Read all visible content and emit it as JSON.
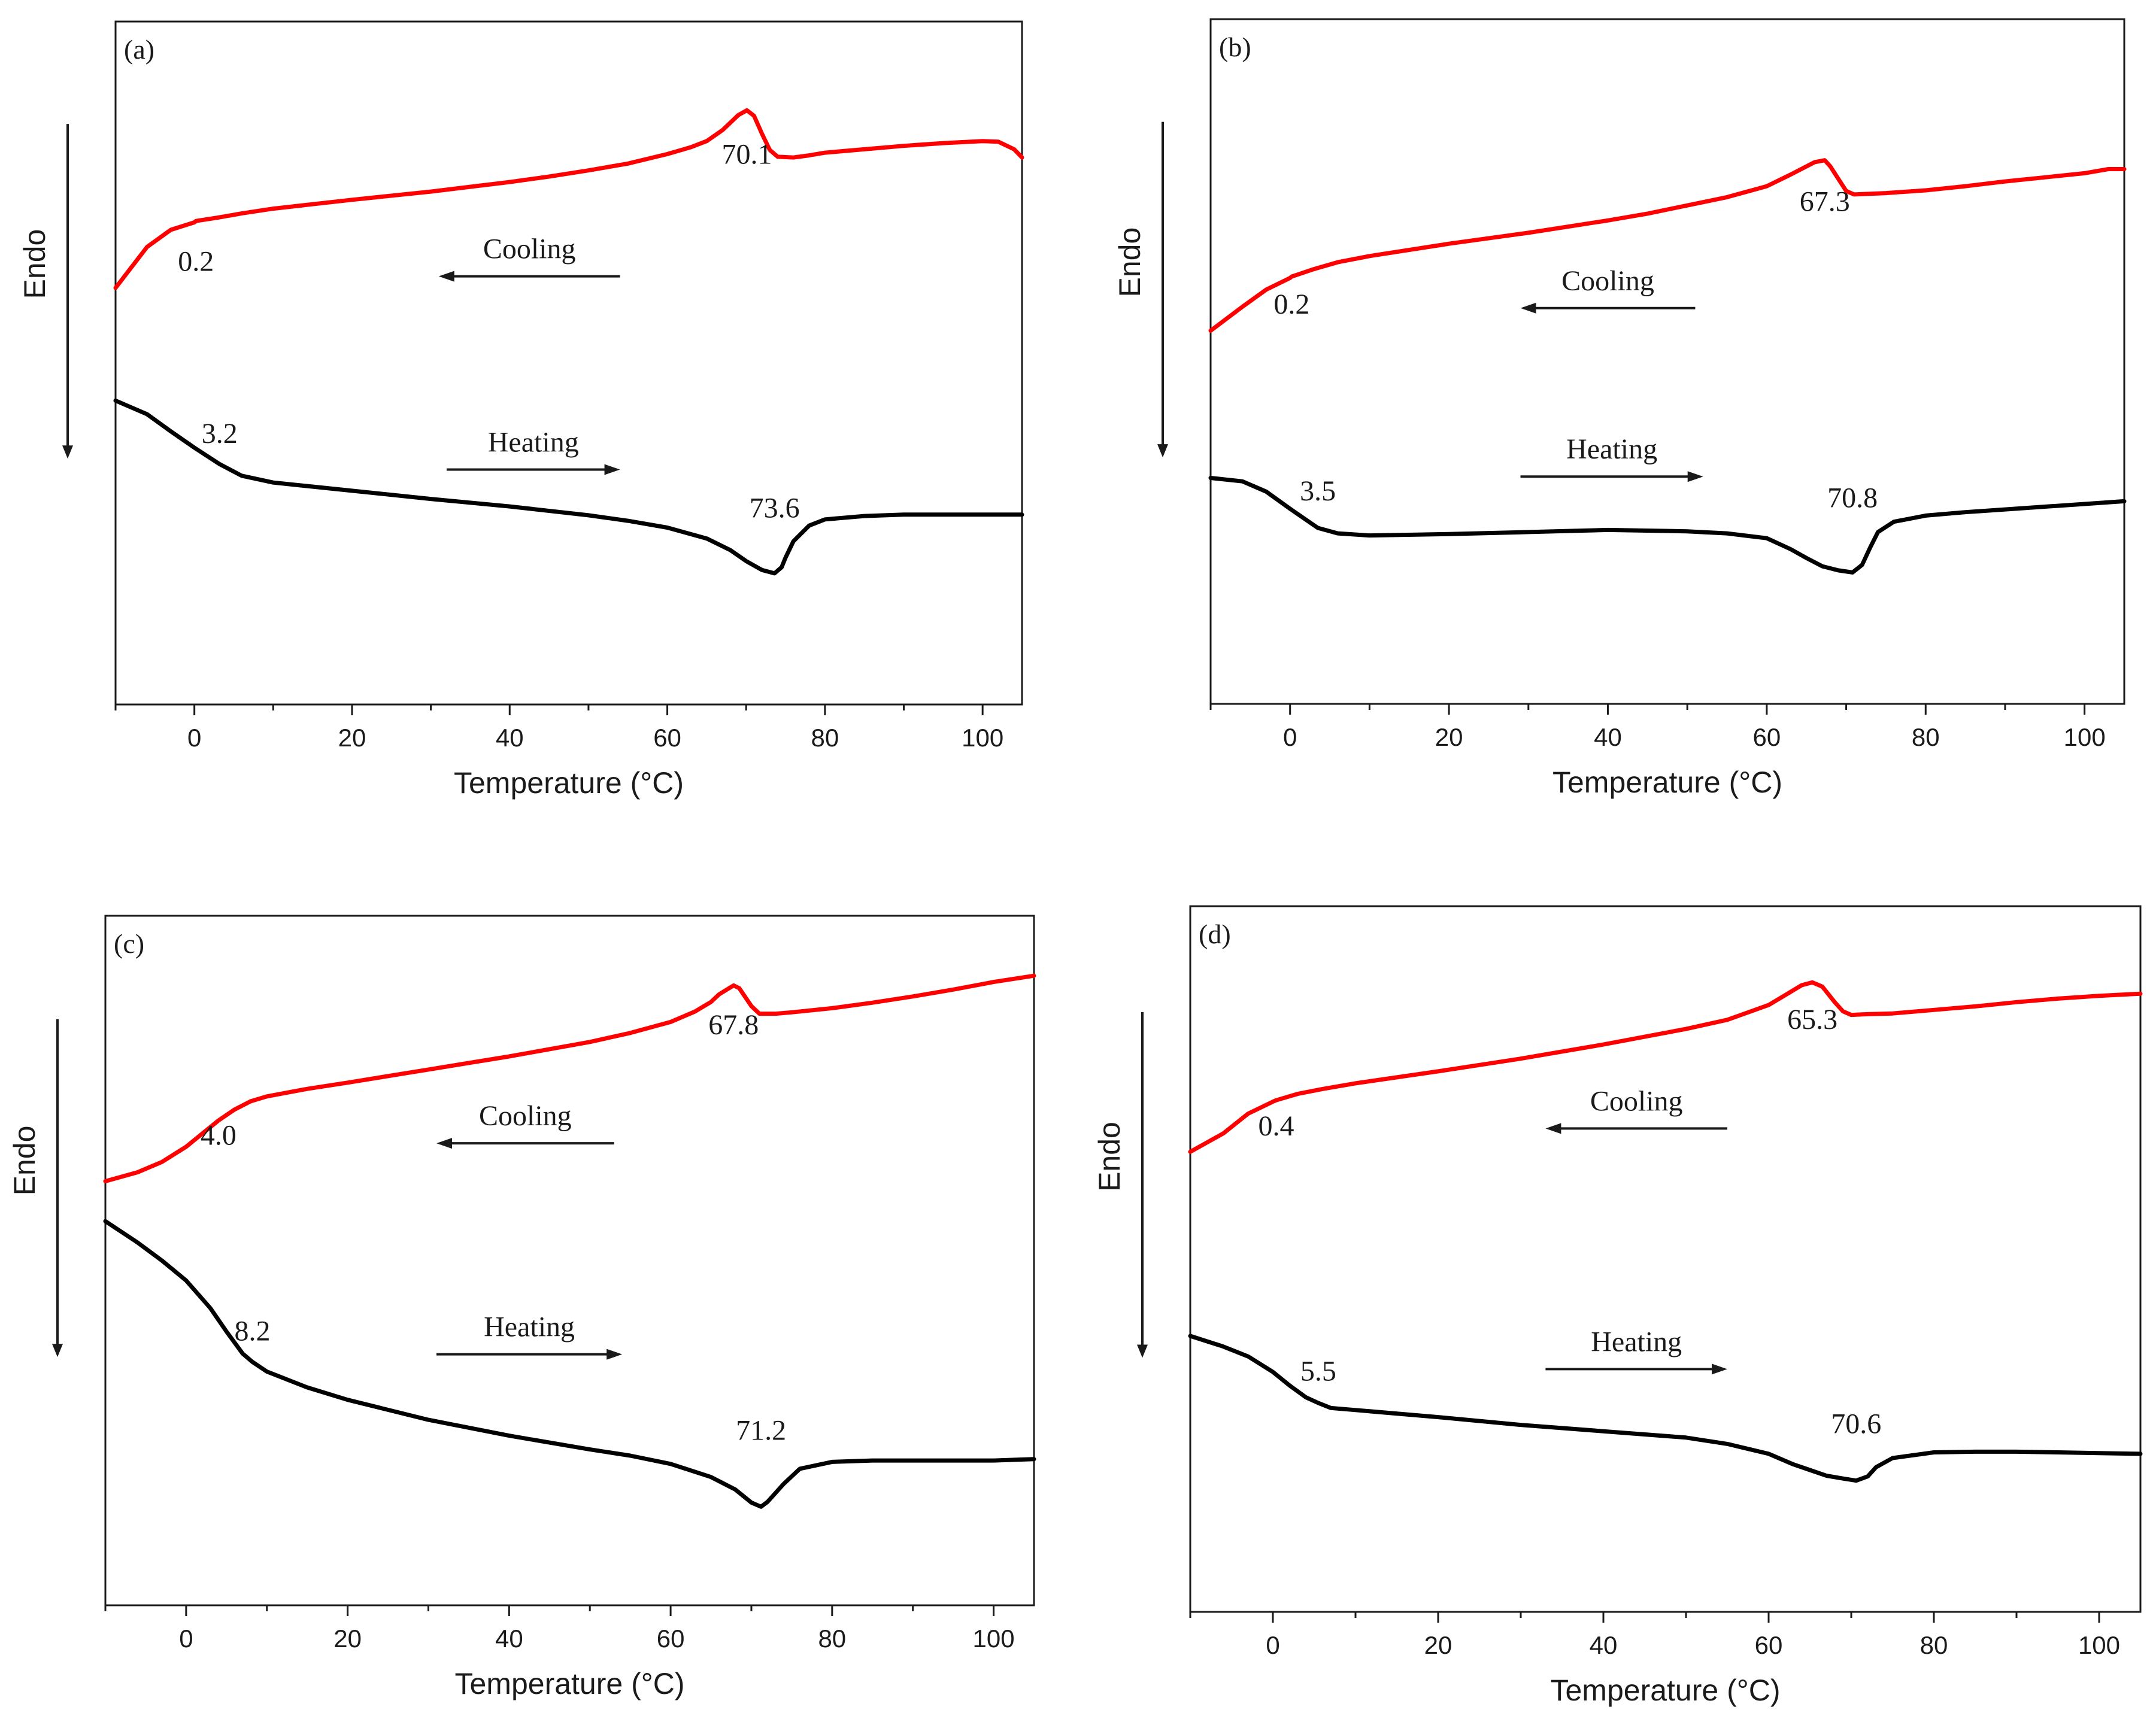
{
  "chart_data": [
    {
      "panel": "(a)",
      "type": "line",
      "xlabel": "Temperature (°C)",
      "ylabel": "Endo",
      "xlim": [
        -10,
        105
      ],
      "xticks": [
        0,
        20,
        40,
        60,
        80,
        100
      ],
      "ylim": [
        0,
        100
      ],
      "yticks_shown": false,
      "series": [
        {
          "direction": "Cooling",
          "color": "#ff0000",
          "x": [
            -10,
            -6,
            -3,
            0,
            0.2,
            3,
            6,
            10,
            20,
            30,
            40,
            45,
            50,
            55,
            60,
            63,
            65,
            67,
            68,
            69,
            70.1,
            71,
            72,
            73,
            74,
            76,
            78,
            80,
            85,
            90,
            95,
            100,
            102,
            104,
            105
          ],
          "y": [
            61,
            67,
            69.5,
            70.6,
            70.8,
            71.3,
            71.9,
            72.6,
            73.9,
            75.1,
            76.5,
            77.3,
            78.2,
            79.2,
            80.6,
            81.6,
            82.5,
            84.1,
            85.2,
            86.3,
            87.0,
            86.2,
            83.6,
            81.2,
            80.2,
            80.1,
            80.4,
            80.8,
            81.3,
            81.8,
            82.2,
            82.5,
            82.4,
            81.3,
            80.1
          ]
        },
        {
          "direction": "Heating",
          "color": "#000000",
          "x": [
            -10,
            -6,
            -3,
            0,
            3.2,
            6,
            10,
            20,
            30,
            40,
            50,
            55,
            60,
            65,
            68,
            70,
            72,
            73.6,
            74.5,
            75,
            76,
            78,
            80,
            85,
            90,
            95,
            100,
            105
          ],
          "y": [
            44.5,
            42.5,
            40,
            37.6,
            35.2,
            33.5,
            32.5,
            31.3,
            30.1,
            29,
            27.7,
            26.9,
            25.9,
            24.3,
            22.6,
            21.0,
            19.7,
            19.2,
            20.1,
            21.5,
            23.9,
            26.2,
            27.1,
            27.6,
            27.8,
            27.8,
            27.8,
            27.8
          ]
        }
      ],
      "annotations": [
        {
          "text": "70.1",
          "x": 70.1,
          "y": 79.2
        },
        {
          "text": "0.2",
          "x": 0.2,
          "y": 63.5
        },
        {
          "text": "3.2",
          "x": 3.2,
          "y": 38.3
        },
        {
          "text": "73.6",
          "x": 73.6,
          "y": 27.4
        }
      ],
      "arrows": [
        {
          "text": "Cooling",
          "direction": "left",
          "x_from": 54,
          "x_to": 31,
          "y": 62.7
        },
        {
          "text": "Heating",
          "direction": "right",
          "x_from": 32,
          "x_to": 54,
          "y": 34.4
        }
      ],
      "grid": false,
      "legend": "none"
    },
    {
      "panel": "(b)",
      "type": "line",
      "xlabel": "Temperature (°C)",
      "ylabel": "Endo",
      "xlim": [
        -10,
        105
      ],
      "xticks": [
        0,
        20,
        40,
        60,
        80,
        100
      ],
      "ylim": [
        0,
        100
      ],
      "yticks_shown": false,
      "series": [
        {
          "direction": "Cooling",
          "color": "#ff0000",
          "x": [
            -10,
            -6,
            -3,
            0,
            0.2,
            3,
            6,
            10,
            20,
            30,
            40,
            45,
            50,
            55,
            60,
            63,
            65,
            66,
            67.3,
            68,
            69,
            70,
            71,
            73,
            75,
            80,
            85,
            90,
            95,
            100,
            103,
            105
          ],
          "y": [
            54.5,
            58,
            60.5,
            62.2,
            62.4,
            63.5,
            64.5,
            65.4,
            67.2,
            68.8,
            70.6,
            71.6,
            72.8,
            74,
            75.6,
            77.3,
            78.5,
            79.1,
            79.4,
            78.5,
            76.7,
            74.9,
            74.4,
            74.5,
            74.6,
            75,
            75.6,
            76.3,
            76.9,
            77.5,
            78.1,
            78.1
          ]
        },
        {
          "direction": "Heating",
          "color": "#000000",
          "x": [
            -10,
            -6,
            -3,
            0,
            3.5,
            6,
            10,
            20,
            30,
            40,
            50,
            55,
            60,
            63,
            65,
            67,
            69,
            70.8,
            72,
            73,
            74,
            76,
            80,
            85,
            90,
            95,
            100,
            105
          ],
          "y": [
            33,
            32.5,
            31,
            28.5,
            25.7,
            24.9,
            24.6,
            24.8,
            25.1,
            25.4,
            25.2,
            24.9,
            24.2,
            22.6,
            21.3,
            20.1,
            19.5,
            19.2,
            20.3,
            22.8,
            25.1,
            26.6,
            27.5,
            28,
            28.4,
            28.8,
            29.2,
            29.6
          ]
        }
      ],
      "annotations": [
        {
          "text": "67.3",
          "x": 67.3,
          "y": 72.0
        },
        {
          "text": "0.2",
          "x": 0.2,
          "y": 57.0
        },
        {
          "text": "3.5",
          "x": 3.5,
          "y": 29.7
        },
        {
          "text": "70.8",
          "x": 70.8,
          "y": 28.7
        }
      ],
      "arrows": [
        {
          "text": "Cooling",
          "direction": "left",
          "x_from": 51,
          "x_to": 29,
          "y": 57.8
        },
        {
          "text": "Heating",
          "direction": "right",
          "x_from": 29,
          "x_to": 52,
          "y": 33.2
        }
      ],
      "grid": false,
      "legend": "none"
    },
    {
      "panel": "(c)",
      "type": "line",
      "xlabel": "Temperature (°C)",
      "ylabel": "Endo",
      "xlim": [
        -10,
        105
      ],
      "xticks": [
        0,
        20,
        40,
        60,
        80,
        100
      ],
      "ylim": [
        0,
        100
      ],
      "yticks_shown": false,
      "series": [
        {
          "direction": "Cooling",
          "color": "#ff0000",
          "x": [
            -10,
            -6,
            -3,
            0,
            2,
            4,
            6,
            8,
            10,
            15,
            20,
            30,
            40,
            50,
            55,
            60,
            63,
            65,
            66,
            67.8,
            68.5,
            70,
            71,
            73,
            75,
            80,
            85,
            90,
            95,
            100,
            105
          ],
          "y": [
            61.5,
            62.8,
            64.3,
            66.5,
            68.4,
            70.3,
            71.9,
            73.1,
            73.8,
            74.9,
            75.8,
            77.7,
            79.6,
            81.7,
            83,
            84.6,
            86.1,
            87.5,
            88.6,
            89.9,
            89.5,
            86.9,
            85.8,
            85.8,
            86,
            86.6,
            87.4,
            88.3,
            89.3,
            90.4,
            91.3
          ]
        },
        {
          "direction": "Heating",
          "color": "#000000",
          "x": [
            -10,
            -6,
            -3,
            0,
            3,
            5,
            7,
            8.2,
            10,
            15,
            20,
            30,
            40,
            50,
            55,
            60,
            65,
            68,
            70,
            71.2,
            72,
            74,
            76,
            80,
            85,
            90,
            95,
            100,
            105
          ],
          "y": [
            55.7,
            52.6,
            50,
            47.1,
            43.1,
            39.7,
            36.5,
            35.3,
            33.9,
            31.6,
            29.8,
            26.9,
            24.6,
            22.6,
            21.7,
            20.5,
            18.6,
            16.8,
            14.9,
            14.3,
            15,
            17.6,
            19.8,
            20.8,
            21,
            21,
            21,
            21,
            21.2
          ]
        }
      ],
      "annotations": [
        {
          "text": "67.8",
          "x": 67.8,
          "y": 82.8
        },
        {
          "text": "4.0",
          "x": 4.0,
          "y": 66.8
        },
        {
          "text": "8.2",
          "x": 8.2,
          "y": 38.4
        },
        {
          "text": "71.2",
          "x": 71.2,
          "y": 24.0
        }
      ],
      "arrows": [
        {
          "text": "Cooling",
          "direction": "left",
          "x_from": 53,
          "x_to": 31,
          "y": 67.0
        },
        {
          "text": "Heating",
          "direction": "right",
          "x_from": 31,
          "x_to": 54,
          "y": 36.4
        }
      ],
      "grid": false,
      "legend": "none"
    },
    {
      "panel": "(d)",
      "type": "line",
      "xlabel": "Temperature (°C)",
      "ylabel": "Endo",
      "xlim": [
        -10,
        105
      ],
      "xticks": [
        0,
        20,
        40,
        60,
        80,
        100
      ],
      "ylim": [
        0,
        100
      ],
      "yticks_shown": false,
      "series": [
        {
          "direction": "Cooling",
          "color": "#ff0000",
          "x": [
            -10,
            -6,
            -3,
            0,
            0.4,
            3,
            6,
            10,
            20,
            30,
            40,
            50,
            55,
            60,
            62,
            64,
            65.3,
            66.5,
            68,
            69,
            70,
            72,
            75,
            80,
            85,
            90,
            95,
            100,
            105
          ],
          "y": [
            65.2,
            67.8,
            70.6,
            72.3,
            72.5,
            73.4,
            74.1,
            74.9,
            76.6,
            78.4,
            80.4,
            82.6,
            83.9,
            86,
            87.4,
            88.8,
            89.2,
            88.6,
            86.4,
            85.1,
            84.6,
            84.7,
            84.8,
            85.3,
            85.8,
            86.4,
            86.9,
            87.3,
            87.6
          ]
        },
        {
          "direction": "Heating",
          "color": "#000000",
          "x": [
            -10,
            -6,
            -3,
            0,
            2,
            4,
            5.5,
            7,
            10,
            20,
            30,
            40,
            50,
            55,
            60,
            63,
            65,
            67,
            69,
            70.6,
            72,
            73,
            75,
            80,
            85,
            90,
            95,
            100,
            105
          ],
          "y": [
            39.1,
            37.6,
            36.2,
            34,
            32.1,
            30.4,
            29.6,
            28.9,
            28.6,
            27.6,
            26.5,
            25.6,
            24.7,
            23.8,
            22.4,
            20.9,
            20.1,
            19.3,
            18.9,
            18.6,
            19.2,
            20.5,
            21.8,
            22.6,
            22.7,
            22.7,
            22.6,
            22.5,
            22.4
          ]
        }
      ],
      "annotations": [
        {
          "text": "65.3",
          "x": 65.3,
          "y": 82.6
        },
        {
          "text": "0.4",
          "x": 0.4,
          "y": 67.5
        },
        {
          "text": "5.5",
          "x": 5.5,
          "y": 32.8
        },
        {
          "text": "70.6",
          "x": 70.6,
          "y": 25.3
        }
      ],
      "arrows": [
        {
          "text": "Cooling",
          "direction": "left",
          "x_from": 55,
          "x_to": 33,
          "y": 68.5
        },
        {
          "text": "Heating",
          "direction": "right",
          "x_from": 33,
          "x_to": 55,
          "y": 34.4
        }
      ],
      "grid": false,
      "legend": "none"
    }
  ]
}
